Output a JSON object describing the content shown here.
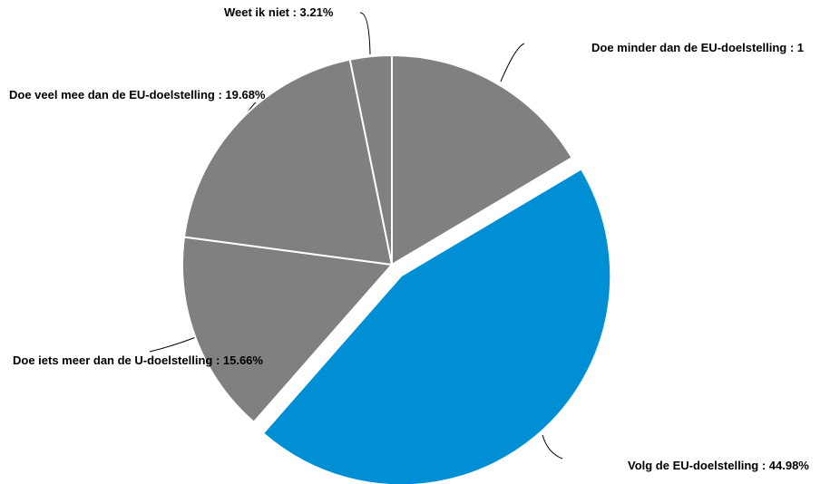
{
  "chart_data": {
    "type": "pie",
    "labels": [
      "Doe minder dan de EU-doelstelling : 1",
      "Volg de EU-doelstelling : 44.98%",
      "Doe iets meer dan de U-doelstelling : 15.66%",
      "Doe veel mee dan de EU-doelstelling : 19.68%",
      "Weet ik niet : 3.21%"
    ],
    "values": [
      16.47,
      44.98,
      15.66,
      19.68,
      3.21
    ],
    "colors": [
      "#808080",
      "#008fd5",
      "#808080",
      "#808080",
      "#808080"
    ],
    "exploded": [
      false,
      true,
      false,
      false,
      false
    ]
  }
}
